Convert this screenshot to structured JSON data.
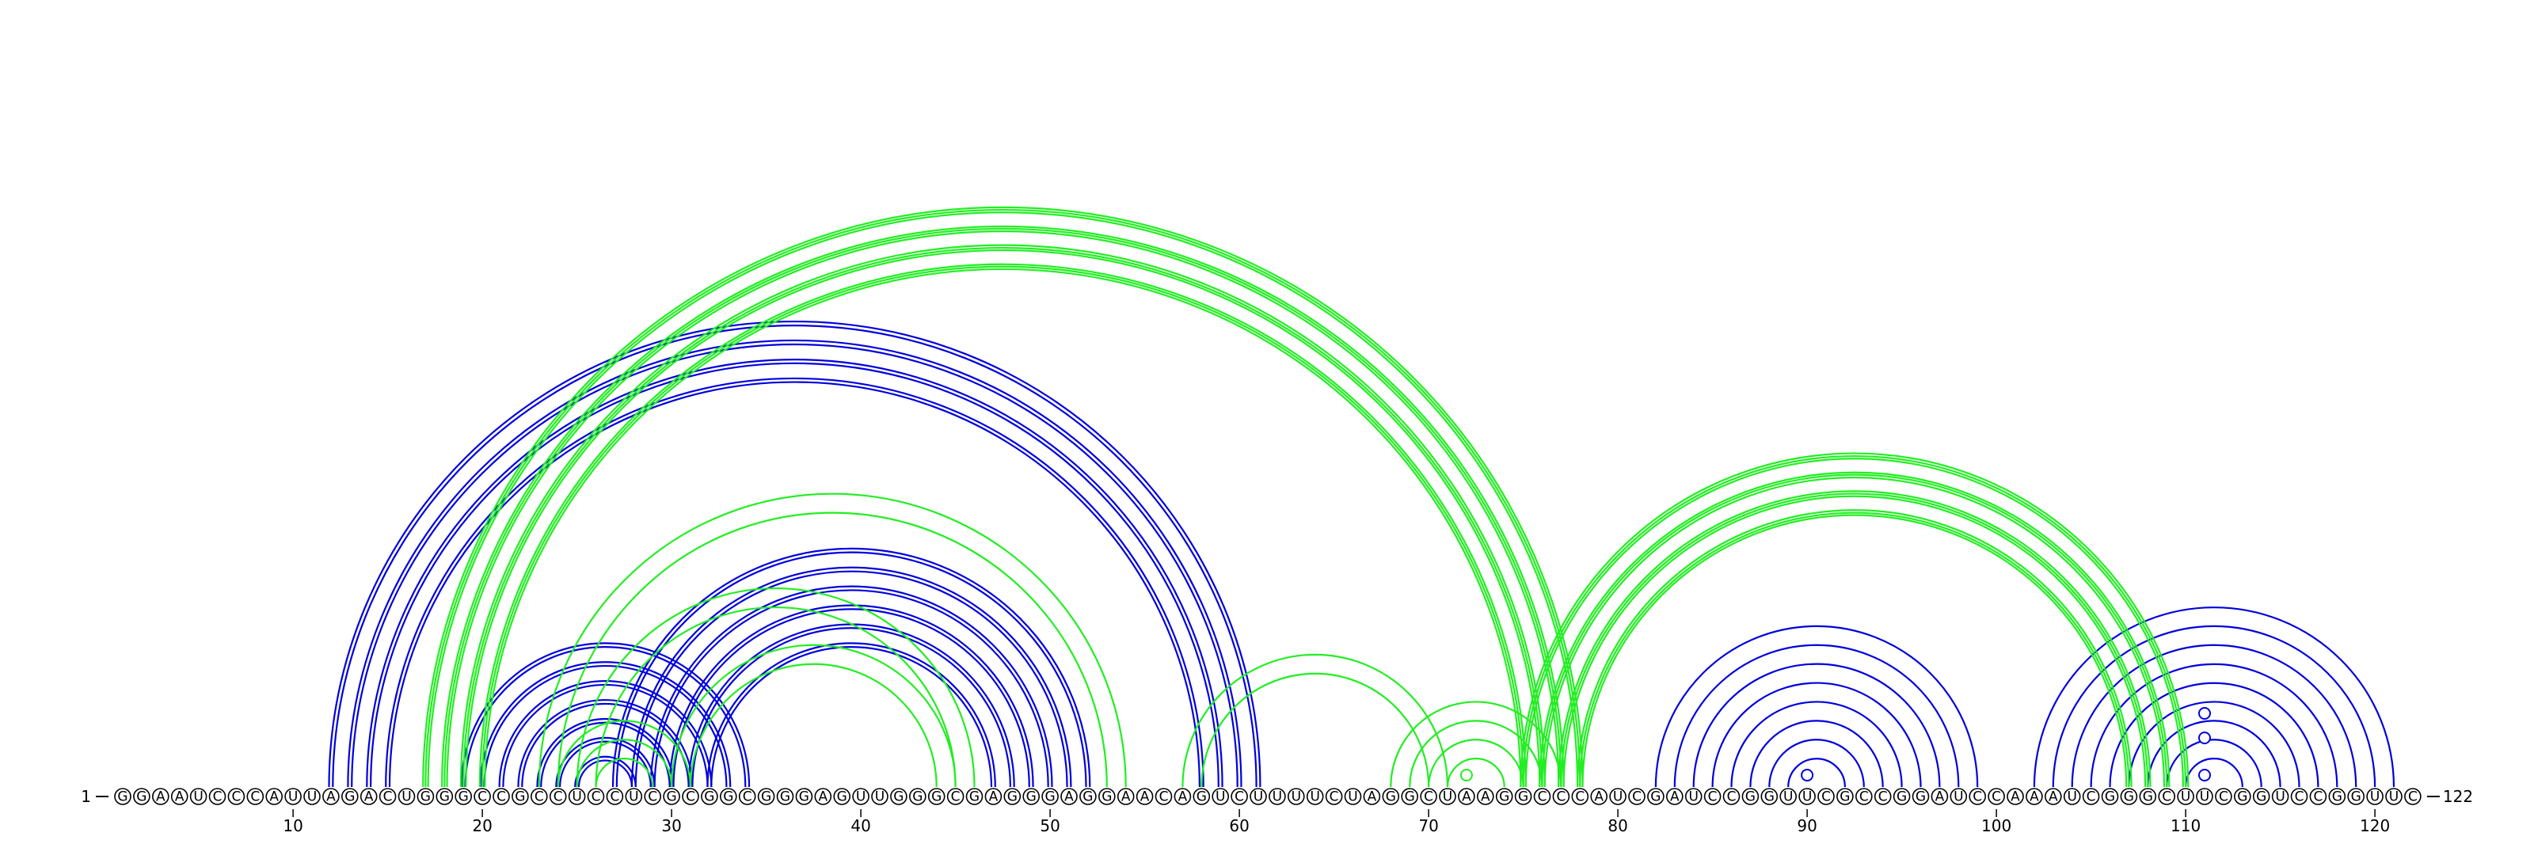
{
  "sequence": "GGAAUCCCAUUAGACUGGGCCGCCUCCUCGCGGCGGGAGUUGGGCGAGGGAGGAACAGUCUUUUCUAGGCUAAGGCCCAUCGAUCCGGUUCGCCGGAUCCAAAUCGGGCUUCGGUCCGGUUC",
  "start_label": "1",
  "end_label": "122",
  "axis_ticks": [
    10,
    20,
    30,
    40,
    50,
    60,
    70,
    80,
    90,
    100,
    110,
    120
  ],
  "colors": {
    "blue": "#0000dd",
    "green": "#22ee22",
    "nucleotide_fill": "#ffffff",
    "nucleotide_stroke": "#000000",
    "text": "#000000"
  },
  "arc_groups": [
    {
      "color": "blue",
      "style": "double",
      "i": [
        12,
        13,
        14,
        15
      ],
      "j": [
        61,
        60,
        59,
        58
      ]
    },
    {
      "color": "blue",
      "style": "double",
      "i": [
        19,
        20,
        21,
        22,
        23,
        24,
        25
      ],
      "j": [
        34,
        33,
        32,
        31,
        30,
        29,
        28
      ]
    },
    {
      "color": "blue",
      "style": "double",
      "i": [
        27,
        28,
        29,
        30,
        31,
        32
      ],
      "j": [
        52,
        51,
        50,
        49,
        48,
        47
      ]
    },
    {
      "color": "blue",
      "style": "single",
      "i": [
        82,
        83,
        84,
        85,
        86,
        87,
        88,
        89
      ],
      "j": [
        99,
        98,
        97,
        96,
        95,
        94,
        93,
        92
      ]
    },
    {
      "color": "blue",
      "style": "single",
      "i": [
        102,
        103,
        104,
        105,
        106,
        107,
        108,
        109,
        110
      ],
      "j": [
        121,
        120,
        119,
        118,
        117,
        116,
        115,
        114,
        113
      ]
    },
    {
      "color": "green",
      "style": "triple",
      "i": [
        17,
        18,
        19,
        20
      ],
      "j": [
        78,
        77,
        76,
        75
      ]
    },
    {
      "color": "green",
      "style": "single",
      "i": [
        23,
        24
      ],
      "j": [
        54,
        53
      ]
    },
    {
      "color": "green",
      "style": "single",
      "i": [
        25,
        26
      ],
      "j": [
        46,
        45
      ]
    },
    {
      "color": "green",
      "style": "single",
      "i": [
        30,
        31
      ],
      "j": [
        45,
        44
      ]
    },
    {
      "color": "green",
      "style": "single",
      "i": [
        24,
        25,
        26
      ],
      "j": [
        31,
        30,
        29
      ]
    },
    {
      "color": "green",
      "style": "single",
      "i": [
        57,
        58
      ],
      "j": [
        71,
        70
      ]
    },
    {
      "color": "green",
      "style": "single",
      "i": [
        68,
        69,
        70,
        71
      ],
      "j": [
        77,
        76,
        75,
        74
      ]
    },
    {
      "color": "green",
      "style": "triple",
      "i": [
        75,
        76,
        77,
        78
      ],
      "j": [
        110,
        109,
        108,
        107
      ]
    }
  ],
  "loop_markers": [
    {
      "position": 72,
      "color": "green",
      "level": 1
    },
    {
      "position": 90,
      "color": "blue",
      "level": 1
    },
    {
      "position": 111,
      "color": "blue",
      "level": 1
    },
    {
      "position": 111,
      "color": "blue",
      "level": 2
    },
    {
      "position": 111,
      "color": "blue",
      "level": 3
    }
  ]
}
